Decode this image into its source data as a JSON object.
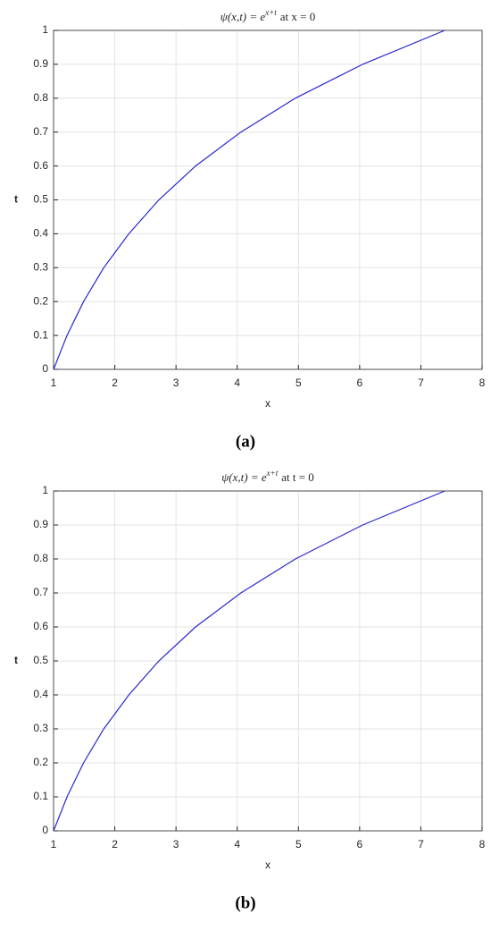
{
  "chart_data": [
    {
      "type": "line",
      "title": "ψ(x,t) = e",
      "title_superscript": "x+t",
      "title_suffix": "at x = 0",
      "xlabel": "x",
      "ylabel": "t",
      "caption": "(a)",
      "x": [
        1,
        1.22,
        1.49,
        1.82,
        2.23,
        2.72,
        3.32,
        4.06,
        4.95,
        6.05,
        7.39
      ],
      "values": [
        0,
        0.1,
        0.2,
        0.3,
        0.4,
        0.5,
        0.6,
        0.7,
        0.8,
        0.9,
        1
      ],
      "color": "#2828d0",
      "xlim": [
        1,
        8
      ],
      "ylim": [
        0,
        1
      ],
      "xticks": [
        1,
        2,
        3,
        4,
        5,
        6,
        7,
        8
      ],
      "yticks": [
        0,
        0.1,
        0.2,
        0.3,
        0.4,
        0.5,
        0.6,
        0.7,
        0.8,
        0.9,
        1
      ],
      "grid": true
    },
    {
      "type": "line",
      "title": "ψ(x,t) = e",
      "title_superscript": "x+t",
      "title_suffix": "at t = 0",
      "xlabel": "x",
      "ylabel": "t",
      "caption": "(b)",
      "x": [
        1,
        1.22,
        1.49,
        1.82,
        2.23,
        2.72,
        3.32,
        4.06,
        4.95,
        6.05,
        7.39
      ],
      "values": [
        0,
        0.1,
        0.2,
        0.3,
        0.4,
        0.5,
        0.6,
        0.7,
        0.8,
        0.9,
        1
      ],
      "color": "#2828d0",
      "xlim": [
        1,
        8
      ],
      "ylim": [
        0,
        1
      ],
      "xticks": [
        1,
        2,
        3,
        4,
        5,
        6,
        7,
        8
      ],
      "yticks": [
        0,
        0.1,
        0.2,
        0.3,
        0.4,
        0.5,
        0.6,
        0.7,
        0.8,
        0.9,
        1
      ],
      "grid": true
    }
  ]
}
